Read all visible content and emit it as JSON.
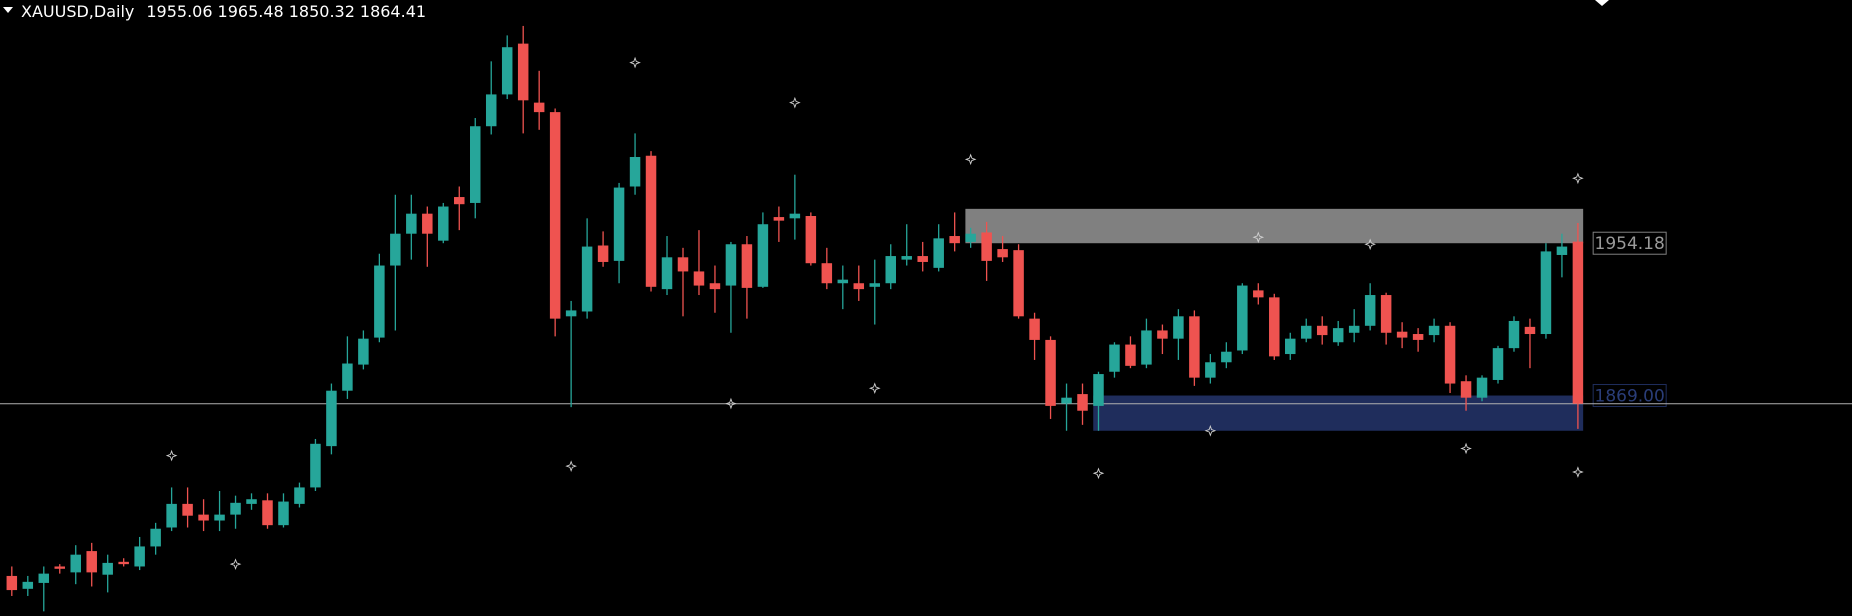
{
  "chart_data": {
    "type": "candlestick",
    "title": "XAUUSD,Daily",
    "up_color": "#26a69a",
    "down_color": "#ef5350",
    "ylim": [
      1745.7,
      2090.2
    ],
    "open": [
      1768.1,
      1760.9,
      1764.2,
      1773.4,
      1770.1,
      1782.0,
      1768.8,
      1776.0,
      1773.4,
      1784.6,
      1795.2,
      1808.4,
      1802.4,
      1799.1,
      1802.4,
      1808.4,
      1810.4,
      1796.5,
      1808.4,
      1817.6,
      1840.7,
      1871.7,
      1886.3,
      1901.4,
      1941.7,
      1959.5,
      1970.7,
      1955.6,
      1980.0,
      1976.7,
      2019.6,
      2037.4,
      2065.8,
      2032.8,
      2027.5,
      1913.3,
      1916.0,
      1952.9,
      1944.3,
      1985.9,
      2003.1,
      1928.5,
      1946.3,
      1938.4,
      1931.8,
      1930.5,
      1953.6,
      1929.8,
      1968.8,
      1968.1,
      1969.4,
      1943.0,
      1931.8,
      1931.8,
      1929.8,
      1931.8,
      1945.0,
      1947.0,
      1940.4,
      1958.2,
      1954.9,
      1960.2,
      1950.9,
      1950.3,
      1912.0,
      1900.1,
      1864.5,
      1869.8,
      1863.2,
      1882.3,
      1897.5,
      1886.3,
      1905.4,
      1900.8,
      1913.3,
      1879.0,
      1887.6,
      1894.2,
      1927.8,
      1923.9,
      1892.2,
      1900.8,
      1908.0,
      1898.8,
      1904.1,
      1908.0,
      1925.2,
      1904.7,
      1903.4,
      1902.8,
      1908.0,
      1877.0,
      1867.8,
      1877.7,
      1895.5,
      1907.4,
      1903.4,
      1947.6,
      1955.06
    ],
    "high": [
      1773.4,
      1768.1,
      1773.4,
      1774.7,
      1785.3,
      1786.6,
      1780.0,
      1778.0,
      1789.9,
      1797.8,
      1817.6,
      1817.6,
      1811.0,
      1815.6,
      1813.0,
      1814.3,
      1814.3,
      1814.3,
      1820.3,
      1844.7,
      1875.7,
      1902.1,
      1905.4,
      1948.3,
      1981.3,
      1981.3,
      1974.7,
      1976.7,
      1985.9,
      2024.2,
      2055.9,
      2070.4,
      2075.7,
      2050.6,
      2029.5,
      1921.9,
      1968.1,
      1960.8,
      1987.9,
      2015.6,
      2005.7,
      1958.2,
      1951.6,
      1961.5,
      1941.7,
      1954.9,
      1958.2,
      1971.4,
      1974.7,
      1992.5,
      1971.4,
      1951.6,
      1941.7,
      1941.7,
      1945.0,
      1953.6,
      1964.8,
      1954.9,
      1964.8,
      1971.4,
      1962.8,
      1966.1,
      1958.2,
      1953.6,
      1915.3,
      1902.1,
      1875.7,
      1875.7,
      1882.3,
      1898.8,
      1902.1,
      1912.0,
      1908.7,
      1917.3,
      1916.6,
      1892.2,
      1898.8,
      1931.8,
      1931.8,
      1925.9,
      1904.1,
      1912.0,
      1913.3,
      1910.7,
      1917.3,
      1931.8,
      1926.5,
      1910.0,
      1906.7,
      1912.0,
      1910.0,
      1880.3,
      1880.3,
      1896.8,
      1913.3,
      1912.0,
      1954.2,
      1959.5,
      1965.48
    ],
    "low": [
      1756.9,
      1756.9,
      1748.3,
      1769.4,
      1763.5,
      1762.2,
      1758.9,
      1773.4,
      1771.4,
      1780.0,
      1793.2,
      1795.2,
      1793.2,
      1793.2,
      1794.5,
      1805.1,
      1794.5,
      1795.2,
      1806.4,
      1815.6,
      1836.1,
      1867.1,
      1883.6,
      1898.8,
      1905.4,
      1945.0,
      1941.0,
      1954.2,
      1961.5,
      1968.1,
      2015.0,
      2034.8,
      2015.6,
      2017.6,
      1902.1,
      1862.5,
      1912.0,
      1941.0,
      1931.8,
      1981.3,
      1927.2,
      1925.2,
      1913.3,
      1925.2,
      1915.3,
      1904.1,
      1912.0,
      1929.2,
      1954.9,
      1956.2,
      1941.7,
      1928.5,
      1917.3,
      1921.9,
      1908.7,
      1928.5,
      1941.7,
      1938.4,
      1938.4,
      1949.6,
      1951.6,
      1933.1,
      1943.7,
      1912.0,
      1888.9,
      1855.9,
      1849.3,
      1852.6,
      1849.3,
      1879.0,
      1884.3,
      1884.3,
      1892.2,
      1888.9,
      1874.4,
      1875.7,
      1884.3,
      1892.2,
      1919.9,
      1888.9,
      1888.9,
      1898.8,
      1897.5,
      1896.8,
      1898.8,
      1905.4,
      1897.5,
      1895.5,
      1893.5,
      1898.8,
      1870.4,
      1860.5,
      1865.8,
      1875.7,
      1893.5,
      1884.3,
      1900.8,
      1935.1,
      1850.32
    ],
    "close": [
      1760.2,
      1764.8,
      1769.4,
      1772.1,
      1780.0,
      1770.1,
      1775.4,
      1774.7,
      1784.6,
      1794.5,
      1808.4,
      1801.8,
      1799.1,
      1802.4,
      1809.0,
      1811.0,
      1796.5,
      1809.7,
      1817.6,
      1842.0,
      1871.7,
      1886.9,
      1900.8,
      1941.7,
      1959.5,
      1970.7,
      1959.5,
      1974.7,
      1976.0,
      2019.6,
      2037.4,
      2063.8,
      2034.1,
      2027.5,
      1912.0,
      1916.6,
      1952.3,
      1943.7,
      1985.3,
      2002.4,
      1929.8,
      1946.3,
      1938.4,
      1930.5,
      1928.5,
      1953.6,
      1929.2,
      1964.8,
      1966.8,
      1970.7,
      1943.0,
      1931.8,
      1933.8,
      1928.5,
      1931.8,
      1947.0,
      1947.0,
      1943.7,
      1956.9,
      1954.2,
      1959.5,
      1944.3,
      1946.3,
      1913.3,
      1900.1,
      1863.2,
      1867.8,
      1860.5,
      1881.0,
      1897.5,
      1885.6,
      1905.4,
      1900.8,
      1913.3,
      1879.0,
      1887.6,
      1893.5,
      1930.5,
      1923.9,
      1890.9,
      1900.8,
      1908.0,
      1902.8,
      1906.7,
      1908.0,
      1925.2,
      1904.1,
      1901.4,
      1900.1,
      1908.0,
      1875.7,
      1867.8,
      1879.0,
      1895.5,
      1910.7,
      1903.4,
      1949.6,
      1952.3,
      1864.41
    ],
    "zones": [
      {
        "color": "#808080",
        "x": [
          60,
          98
        ],
        "edge": 1973.4,
        "level": 1954.18
      },
      {
        "color": "#1f2d5c",
        "x": [
          68,
          98
        ],
        "edge": 1849.3,
        "level": {
          "value": 1869,
          "label": "1869.00"
        }
      }
    ],
    "markers": {
      "x": [
        39,
        49,
        60,
        10,
        14,
        35,
        45,
        54,
        68,
        75,
        78,
        85,
        91,
        98,
        98
      ],
      "values": [
        2055.2,
        2032.8,
        2001.1,
        1835.4,
        1774.7,
        1829.5,
        1864.5,
        1873.1,
        1825.5,
        1849.3,
        1957.5,
        1953.6,
        1839.4,
        1990.5,
        1826.2
      ]
    }
  }
}
